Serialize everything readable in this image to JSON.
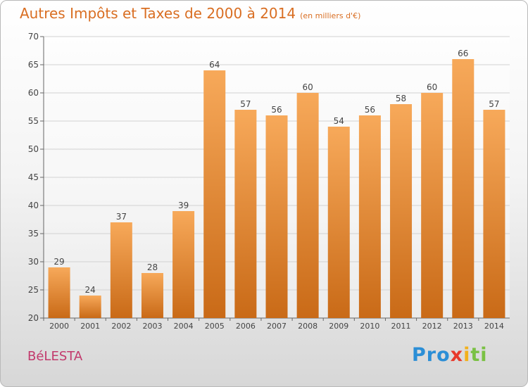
{
  "title": "Autres Impôts et Taxes de 2000 à 2014",
  "unit": "(en milliers d'€)",
  "commune": "BéLESTA",
  "logo": {
    "p1": "Pro",
    "p2": "x",
    "p3": "i",
    "p4": "ti"
  },
  "colors": {
    "bar": "#e38530",
    "bar_light": "#f7a95a",
    "bar_dark": "#c96a17",
    "title": "#d96e22",
    "commune": "#c2396c"
  },
  "chart_data": {
    "type": "bar",
    "categories": [
      "2000",
      "2001",
      "2002",
      "2003",
      "2004",
      "2005",
      "2006",
      "2007",
      "2008",
      "2009",
      "2010",
      "2011",
      "2012",
      "2013",
      "2014"
    ],
    "values": [
      29,
      24,
      37,
      28,
      39,
      64,
      57,
      56,
      60,
      54,
      56,
      58,
      60,
      66,
      57
    ],
    "ylim": [
      20,
      70
    ],
    "yticks": [
      20,
      25,
      30,
      35,
      40,
      45,
      50,
      55,
      60,
      65,
      70
    ],
    "grid": true
  }
}
